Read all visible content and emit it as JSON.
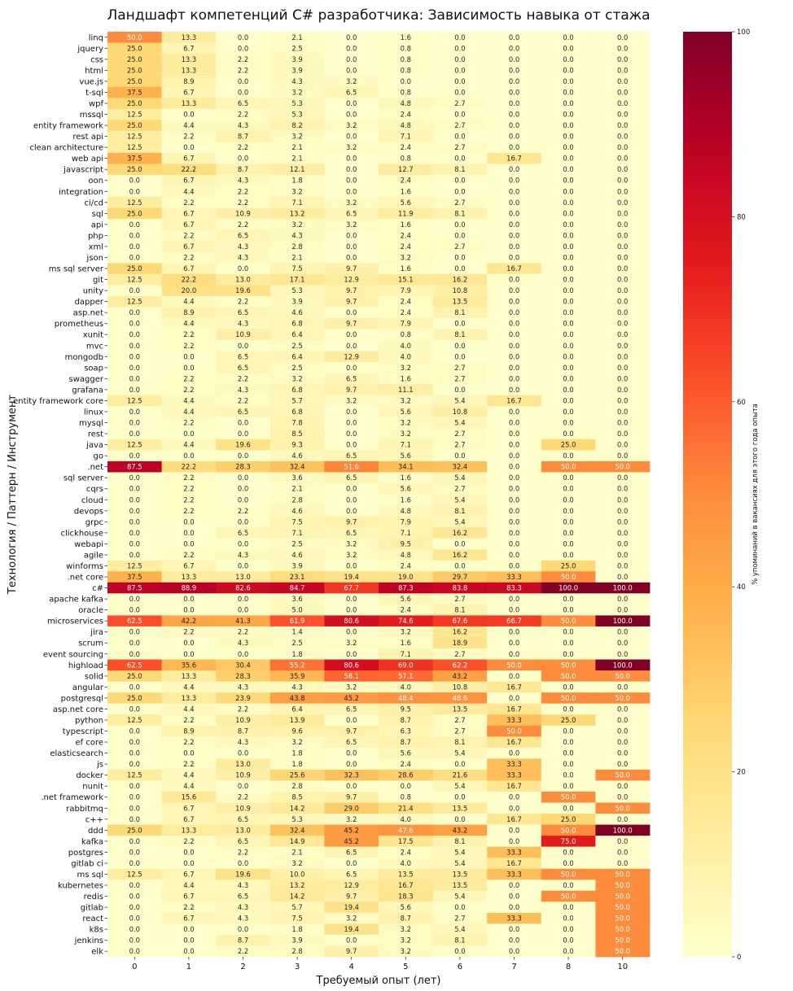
{
  "chart_data": {
    "type": "heatmap",
    "title": "Ландшафт компетенций C# разработчика: Зависимость навыка от стажа",
    "xlabel": "Требуемый опыт (лет)",
    "ylabel": "Технология / Паттерн / Инструмент",
    "colorbar_label": "% упоминаний в вакансиях для этого года опыта",
    "colorbar_range": [
      0,
      100
    ],
    "colorbar_ticks": [
      "0",
      "20",
      "40",
      "60",
      "80",
      "100"
    ],
    "colormap": "YlOrRd",
    "x_categories": [
      "0",
      "1",
      "2",
      "3",
      "4",
      "5",
      "6",
      "7",
      "8",
      "10"
    ],
    "rows": [
      {
        "label": "linq",
        "values": [
          50.0,
          13.3,
          0.0,
          2.1,
          0.0,
          1.6,
          0.0,
          0.0,
          0.0,
          0.0
        ]
      },
      {
        "label": "jquery",
        "values": [
          25.0,
          6.7,
          0.0,
          2.5,
          0.0,
          0.8,
          0.0,
          0.0,
          0.0,
          0.0
        ]
      },
      {
        "label": "css",
        "values": [
          25.0,
          13.3,
          2.2,
          3.9,
          0.0,
          0.8,
          0.0,
          0.0,
          0.0,
          0.0
        ]
      },
      {
        "label": "html",
        "values": [
          25.0,
          13.3,
          2.2,
          3.9,
          0.0,
          0.8,
          0.0,
          0.0,
          0.0,
          0.0
        ]
      },
      {
        "label": "vue.js",
        "values": [
          25.0,
          8.9,
          0.0,
          4.3,
          3.2,
          0.0,
          0.0,
          0.0,
          0.0,
          0.0
        ]
      },
      {
        "label": "t-sql",
        "values": [
          37.5,
          6.7,
          0.0,
          3.2,
          6.5,
          0.8,
          0.0,
          0.0,
          0.0,
          0.0
        ]
      },
      {
        "label": "wpf",
        "values": [
          25.0,
          13.3,
          6.5,
          5.3,
          0.0,
          4.8,
          2.7,
          0.0,
          0.0,
          0.0
        ]
      },
      {
        "label": "mssql",
        "values": [
          12.5,
          0.0,
          2.2,
          5.3,
          0.0,
          2.4,
          0.0,
          0.0,
          0.0,
          0.0
        ]
      },
      {
        "label": "entity framework",
        "values": [
          25.0,
          4.4,
          4.3,
          8.2,
          3.2,
          4.8,
          2.7,
          0.0,
          0.0,
          0.0
        ]
      },
      {
        "label": "rest api",
        "values": [
          12.5,
          2.2,
          8.7,
          3.2,
          0.0,
          7.1,
          0.0,
          0.0,
          0.0,
          0.0
        ]
      },
      {
        "label": "clean architecture",
        "values": [
          12.5,
          0.0,
          2.2,
          2.1,
          3.2,
          2.4,
          2.7,
          0.0,
          0.0,
          0.0
        ]
      },
      {
        "label": "web api",
        "values": [
          37.5,
          6.7,
          0.0,
          2.1,
          0.0,
          0.8,
          0.0,
          16.7,
          0.0,
          0.0
        ]
      },
      {
        "label": "javascript",
        "values": [
          25.0,
          22.2,
          8.7,
          12.1,
          0.0,
          12.7,
          8.1,
          0.0,
          0.0,
          0.0
        ]
      },
      {
        "label": "oon",
        "values": [
          0.0,
          6.7,
          4.3,
          1.8,
          0.0,
          2.4,
          0.0,
          0.0,
          0.0,
          0.0
        ]
      },
      {
        "label": "integration",
        "values": [
          0.0,
          4.4,
          2.2,
          3.2,
          0.0,
          1.6,
          0.0,
          0.0,
          0.0,
          0.0
        ]
      },
      {
        "label": "ci/cd",
        "values": [
          12.5,
          2.2,
          2.2,
          7.1,
          3.2,
          5.6,
          2.7,
          0.0,
          0.0,
          0.0
        ]
      },
      {
        "label": "sql",
        "values": [
          25.0,
          6.7,
          10.9,
          13.2,
          6.5,
          11.9,
          8.1,
          0.0,
          0.0,
          0.0
        ]
      },
      {
        "label": "api",
        "values": [
          0.0,
          6.7,
          2.2,
          3.2,
          3.2,
          1.6,
          0.0,
          0.0,
          0.0,
          0.0
        ]
      },
      {
        "label": "php",
        "values": [
          0.0,
          2.2,
          6.5,
          4.3,
          0.0,
          2.4,
          0.0,
          0.0,
          0.0,
          0.0
        ]
      },
      {
        "label": "xml",
        "values": [
          0.0,
          6.7,
          4.3,
          2.8,
          0.0,
          2.4,
          2.7,
          0.0,
          0.0,
          0.0
        ]
      },
      {
        "label": "json",
        "values": [
          0.0,
          2.2,
          4.3,
          2.1,
          0.0,
          3.2,
          0.0,
          0.0,
          0.0,
          0.0
        ]
      },
      {
        "label": "ms sql server",
        "values": [
          25.0,
          6.7,
          0.0,
          7.5,
          9.7,
          1.6,
          0.0,
          16.7,
          0.0,
          0.0
        ]
      },
      {
        "label": "git",
        "values": [
          12.5,
          22.2,
          13.0,
          17.1,
          12.9,
          15.1,
          16.2,
          0.0,
          0.0,
          0.0
        ]
      },
      {
        "label": "unity",
        "values": [
          0.0,
          20.0,
          19.6,
          5.3,
          9.7,
          7.9,
          10.8,
          0.0,
          0.0,
          0.0
        ]
      },
      {
        "label": "dapper",
        "values": [
          12.5,
          4.4,
          2.2,
          3.9,
          9.7,
          2.4,
          13.5,
          0.0,
          0.0,
          0.0
        ]
      },
      {
        "label": "asp.net",
        "values": [
          0.0,
          8.9,
          6.5,
          4.6,
          0.0,
          2.4,
          8.1,
          0.0,
          0.0,
          0.0
        ]
      },
      {
        "label": "prometheus",
        "values": [
          0.0,
          4.4,
          4.3,
          6.8,
          9.7,
          7.9,
          0.0,
          0.0,
          0.0,
          0.0
        ]
      },
      {
        "label": "xunit",
        "values": [
          0.0,
          2.2,
          10.9,
          6.4,
          0.0,
          0.8,
          8.1,
          0.0,
          0.0,
          0.0
        ]
      },
      {
        "label": "mvc",
        "values": [
          0.0,
          2.2,
          0.0,
          2.5,
          0.0,
          4.0,
          0.0,
          0.0,
          0.0,
          0.0
        ]
      },
      {
        "label": "mongodb",
        "values": [
          0.0,
          0.0,
          6.5,
          6.4,
          12.9,
          4.0,
          0.0,
          0.0,
          0.0,
          0.0
        ]
      },
      {
        "label": "soap",
        "values": [
          0.0,
          0.0,
          6.5,
          2.5,
          0.0,
          3.2,
          2.7,
          0.0,
          0.0,
          0.0
        ]
      },
      {
        "label": "swagger",
        "values": [
          0.0,
          2.2,
          2.2,
          3.2,
          6.5,
          1.6,
          2.7,
          0.0,
          0.0,
          0.0
        ]
      },
      {
        "label": "grafana",
        "values": [
          0.0,
          2.2,
          4.3,
          6.8,
          9.7,
          11.1,
          0.0,
          0.0,
          0.0,
          0.0
        ]
      },
      {
        "label": "entity framework core",
        "values": [
          12.5,
          4.4,
          2.2,
          5.7,
          3.2,
          3.2,
          5.4,
          16.7,
          0.0,
          0.0
        ]
      },
      {
        "label": "linux",
        "values": [
          0.0,
          4.4,
          6.5,
          6.8,
          0.0,
          5.6,
          10.8,
          0.0,
          0.0,
          0.0
        ]
      },
      {
        "label": "mysql",
        "values": [
          0.0,
          2.2,
          0.0,
          7.8,
          0.0,
          3.2,
          5.4,
          0.0,
          0.0,
          0.0
        ]
      },
      {
        "label": "rest",
        "values": [
          0.0,
          0.0,
          0.0,
          8.5,
          0.0,
          3.2,
          2.7,
          0.0,
          0.0,
          0.0
        ]
      },
      {
        "label": "java",
        "values": [
          12.5,
          4.4,
          19.6,
          9.3,
          0.0,
          7.1,
          2.7,
          0.0,
          25.0,
          0.0
        ]
      },
      {
        "label": "go",
        "values": [
          0.0,
          0.0,
          0.0,
          4.6,
          6.5,
          5.6,
          0.0,
          0.0,
          0.0,
          0.0
        ]
      },
      {
        "label": ".net",
        "values": [
          87.5,
          22.2,
          28.3,
          32.4,
          51.6,
          34.1,
          32.4,
          0.0,
          50.0,
          50.0
        ]
      },
      {
        "label": "sql server",
        "values": [
          0.0,
          2.2,
          0.0,
          3.6,
          6.5,
          1.6,
          5.4,
          0.0,
          0.0,
          0.0
        ]
      },
      {
        "label": "cqrs",
        "values": [
          0.0,
          2.2,
          0.0,
          2.1,
          0.0,
          5.6,
          2.7,
          0.0,
          0.0,
          0.0
        ]
      },
      {
        "label": "cloud",
        "values": [
          0.0,
          2.2,
          0.0,
          2.8,
          0.0,
          1.6,
          5.4,
          0.0,
          0.0,
          0.0
        ]
      },
      {
        "label": "devops",
        "values": [
          0.0,
          2.2,
          2.2,
          4.6,
          0.0,
          4.8,
          8.1,
          0.0,
          0.0,
          0.0
        ]
      },
      {
        "label": "grpc",
        "values": [
          0.0,
          0.0,
          0.0,
          7.5,
          9.7,
          7.9,
          5.4,
          0.0,
          0.0,
          0.0
        ]
      },
      {
        "label": "clickhouse",
        "values": [
          0.0,
          0.0,
          6.5,
          7.1,
          6.5,
          7.1,
          16.2,
          0.0,
          0.0,
          0.0
        ]
      },
      {
        "label": "webapi",
        "values": [
          0.0,
          0.0,
          0.0,
          2.5,
          3.2,
          9.5,
          0.0,
          0.0,
          0.0,
          0.0
        ]
      },
      {
        "label": "agile",
        "values": [
          0.0,
          2.2,
          4.3,
          4.6,
          3.2,
          4.8,
          16.2,
          0.0,
          0.0,
          0.0
        ]
      },
      {
        "label": "winforms",
        "values": [
          12.5,
          6.7,
          0.0,
          3.9,
          0.0,
          2.4,
          0.0,
          0.0,
          25.0,
          0.0
        ]
      },
      {
        "label": ".net core",
        "values": [
          37.5,
          13.3,
          13.0,
          23.1,
          19.4,
          19.0,
          29.7,
          33.3,
          50.0,
          0.0
        ]
      },
      {
        "label": "c#",
        "values": [
          87.5,
          88.9,
          82.6,
          84.7,
          67.7,
          87.3,
          83.8,
          83.3,
          100.0,
          100.0
        ]
      },
      {
        "label": "apache kafka",
        "values": [
          0.0,
          0.0,
          0.0,
          3.6,
          0.0,
          5.6,
          2.7,
          0.0,
          0.0,
          0.0
        ]
      },
      {
        "label": "oracle",
        "values": [
          0.0,
          0.0,
          0.0,
          5.0,
          0.0,
          2.4,
          8.1,
          0.0,
          0.0,
          0.0
        ]
      },
      {
        "label": "microservices",
        "values": [
          62.5,
          42.2,
          41.3,
          61.9,
          80.6,
          74.6,
          67.6,
          66.7,
          50.0,
          100.0
        ]
      },
      {
        "label": "jira",
        "values": [
          0.0,
          2.2,
          2.2,
          1.4,
          0.0,
          3.2,
          16.2,
          0.0,
          0.0,
          0.0
        ]
      },
      {
        "label": "scrum",
        "values": [
          0.0,
          0.0,
          4.3,
          2.5,
          3.2,
          1.6,
          18.9,
          0.0,
          0.0,
          0.0
        ]
      },
      {
        "label": "event sourcing",
        "values": [
          0.0,
          0.0,
          0.0,
          1.8,
          0.0,
          7.1,
          2.7,
          0.0,
          0.0,
          0.0
        ]
      },
      {
        "label": "highload",
        "values": [
          62.5,
          35.6,
          30.4,
          55.2,
          80.6,
          69.0,
          62.2,
          50.0,
          50.0,
          100.0
        ]
      },
      {
        "label": "solid",
        "values": [
          25.0,
          13.3,
          28.3,
          35.9,
          58.1,
          57.1,
          43.2,
          0.0,
          50.0,
          50.0
        ]
      },
      {
        "label": "angular",
        "values": [
          0.0,
          4.4,
          4.3,
          4.3,
          3.2,
          4.0,
          10.8,
          16.7,
          0.0,
          0.0
        ]
      },
      {
        "label": "postgresql",
        "values": [
          25.0,
          13.3,
          23.9,
          43.8,
          45.2,
          48.4,
          48.6,
          0.0,
          50.0,
          50.0
        ]
      },
      {
        "label": "asp.net core",
        "values": [
          0.0,
          4.4,
          2.2,
          6.4,
          6.5,
          9.5,
          13.5,
          16.7,
          0.0,
          0.0
        ]
      },
      {
        "label": "python",
        "values": [
          12.5,
          2.2,
          10.9,
          13.9,
          0.0,
          8.7,
          2.7,
          33.3,
          25.0,
          0.0
        ]
      },
      {
        "label": "typescript",
        "values": [
          0.0,
          8.9,
          8.7,
          9.6,
          9.7,
          6.3,
          2.7,
          50.0,
          0.0,
          0.0
        ]
      },
      {
        "label": "ef core",
        "values": [
          0.0,
          2.2,
          4.3,
          3.2,
          6.5,
          8.7,
          8.1,
          16.7,
          0.0,
          0.0
        ]
      },
      {
        "label": "elasticsearch",
        "values": [
          0.0,
          0.0,
          0.0,
          1.8,
          0.0,
          5.6,
          5.4,
          0.0,
          0.0,
          0.0
        ]
      },
      {
        "label": "js",
        "values": [
          0.0,
          2.2,
          13.0,
          1.8,
          0.0,
          2.4,
          0.0,
          33.3,
          0.0,
          0.0
        ]
      },
      {
        "label": "docker",
        "values": [
          12.5,
          4.4,
          10.9,
          25.6,
          32.3,
          28.6,
          21.6,
          33.3,
          0.0,
          50.0
        ]
      },
      {
        "label": "nunit",
        "values": [
          0.0,
          4.4,
          0.0,
          2.8,
          0.0,
          0.0,
          5.4,
          16.7,
          0.0,
          0.0
        ]
      },
      {
        "label": ".net framework",
        "values": [
          0.0,
          15.6,
          2.2,
          8.5,
          9.7,
          0.8,
          0.0,
          0.0,
          50.0,
          0.0
        ]
      },
      {
        "label": "rabbitmq",
        "values": [
          0.0,
          6.7,
          10.9,
          14.2,
          29.0,
          21.4,
          13.5,
          0.0,
          0.0,
          50.0
        ]
      },
      {
        "label": "c++",
        "values": [
          0.0,
          6.7,
          6.5,
          5.3,
          3.2,
          4.0,
          0.0,
          16.7,
          25.0,
          0.0
        ]
      },
      {
        "label": "ddd",
        "values": [
          25.0,
          13.3,
          13.0,
          32.4,
          45.2,
          47.6,
          43.2,
          0.0,
          50.0,
          100.0
        ]
      },
      {
        "label": "kafka",
        "values": [
          0.0,
          2.2,
          6.5,
          14.9,
          45.2,
          17.5,
          8.1,
          0.0,
          75.0,
          0.0
        ]
      },
      {
        "label": "postgres",
        "values": [
          0.0,
          0.0,
          2.2,
          2.1,
          6.5,
          2.4,
          5.4,
          33.3,
          0.0,
          0.0
        ]
      },
      {
        "label": "gitlab ci",
        "values": [
          0.0,
          0.0,
          0.0,
          3.2,
          0.0,
          4.0,
          5.4,
          16.7,
          0.0,
          0.0
        ]
      },
      {
        "label": "ms sql",
        "values": [
          12.5,
          6.7,
          19.6,
          10.0,
          6.5,
          13.5,
          13.5,
          33.3,
          50.0,
          50.0
        ]
      },
      {
        "label": "kubernetes",
        "values": [
          0.0,
          4.4,
          4.3,
          13.2,
          12.9,
          16.7,
          13.5,
          0.0,
          0.0,
          50.0
        ]
      },
      {
        "label": "redis",
        "values": [
          0.0,
          6.7,
          6.5,
          14.2,
          9.7,
          18.3,
          5.4,
          0.0,
          50.0,
          50.0
        ]
      },
      {
        "label": "gitlab",
        "values": [
          0.0,
          2.2,
          4.3,
          5.7,
          19.4,
          5.6,
          0.0,
          0.0,
          0.0,
          50.0
        ]
      },
      {
        "label": "react",
        "values": [
          0.0,
          6.7,
          4.3,
          7.5,
          3.2,
          8.7,
          2.7,
          33.3,
          0.0,
          50.0
        ]
      },
      {
        "label": "k8s",
        "values": [
          0.0,
          0.0,
          0.0,
          1.8,
          19.4,
          3.2,
          5.4,
          0.0,
          0.0,
          50.0
        ]
      },
      {
        "label": "jenkins",
        "values": [
          0.0,
          0.0,
          8.7,
          3.9,
          0.0,
          3.2,
          8.1,
          0.0,
          0.0,
          50.0
        ]
      },
      {
        "label": "elk",
        "values": [
          0.0,
          0.0,
          2.2,
          2.8,
          9.7,
          3.2,
          0.0,
          0.0,
          0.0,
          50.0
        ]
      }
    ]
  }
}
